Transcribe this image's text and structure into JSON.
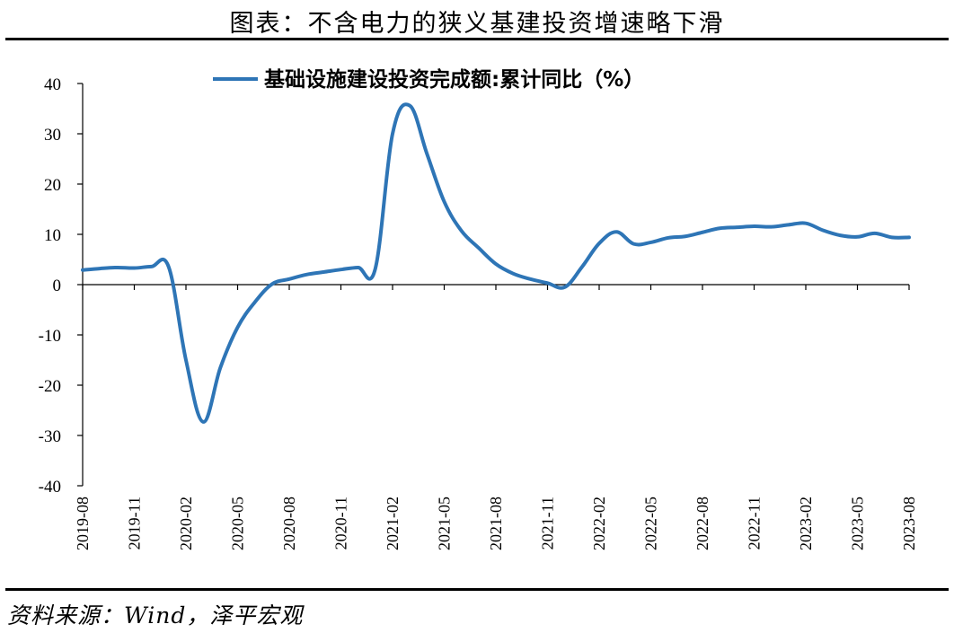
{
  "header": {
    "title": "图表：不含电力的狭义基建投资增速略下滑"
  },
  "footer": {
    "source": "资料来源：Wind，泽平宏观"
  },
  "chart_data": {
    "type": "line",
    "legend": {
      "position": "top",
      "entries": [
        "基础设施建设投资完成额:累计同比（%）"
      ]
    },
    "ylim": [
      -40,
      40
    ],
    "yticks": [
      40,
      30,
      20,
      10,
      0,
      -10,
      -20,
      -30,
      -40
    ],
    "ytick_labels": [
      "40",
      "30",
      "20",
      "10",
      "0",
      "-10",
      "-20",
      "-30",
      "-40"
    ],
    "xtick_labels": [
      "2019-08",
      "2019-11",
      "2020-02",
      "2020-05",
      "2020-08",
      "2020-11",
      "2021-02",
      "2021-05",
      "2021-08",
      "2021-11",
      "2022-02",
      "2022-05",
      "2022-08",
      "2022-11",
      "2023-02",
      "2023-05",
      "2023-08"
    ],
    "grid": false,
    "color": "#2E75B6",
    "series": [
      {
        "name": "基础设施建设投资完成额:累计同比（%）",
        "x": [
          "2019-08",
          "2019-09",
          "2019-10",
          "2019-11",
          "2019-12",
          "2020-01",
          "2020-02",
          "2020-03",
          "2020-04",
          "2020-05",
          "2020-06",
          "2020-07",
          "2020-08",
          "2020-09",
          "2020-10",
          "2020-11",
          "2020-12",
          "2021-01",
          "2021-02",
          "2021-03",
          "2021-04",
          "2021-05",
          "2021-06",
          "2021-07",
          "2021-08",
          "2021-09",
          "2021-10",
          "2021-11",
          "2021-12",
          "2022-01",
          "2022-02",
          "2022-03",
          "2022-04",
          "2022-05",
          "2022-06",
          "2022-07",
          "2022-08",
          "2022-09",
          "2022-10",
          "2022-11",
          "2022-12",
          "2023-01",
          "2023-02",
          "2023-03",
          "2023-04",
          "2023-05",
          "2023-06",
          "2023-07",
          "2023-08"
        ],
        "values": [
          2.9,
          3.2,
          3.4,
          3.3,
          3.6,
          3.5,
          -15.0,
          -27.3,
          -16.5,
          -8.5,
          -3.5,
          0.1,
          1.1,
          2.0,
          2.5,
          3.0,
          3.4,
          3.2,
          30.0,
          35.6,
          26.0,
          16.5,
          10.7,
          7.3,
          4.1,
          2.2,
          1.1,
          0.3,
          -0.5,
          3.5,
          8.2,
          10.5,
          8.1,
          8.4,
          9.3,
          9.6,
          10.4,
          11.2,
          11.4,
          11.6,
          11.5,
          11.9,
          12.2,
          10.8,
          9.8,
          9.5,
          10.2,
          9.4,
          9.4
        ]
      }
    ]
  }
}
